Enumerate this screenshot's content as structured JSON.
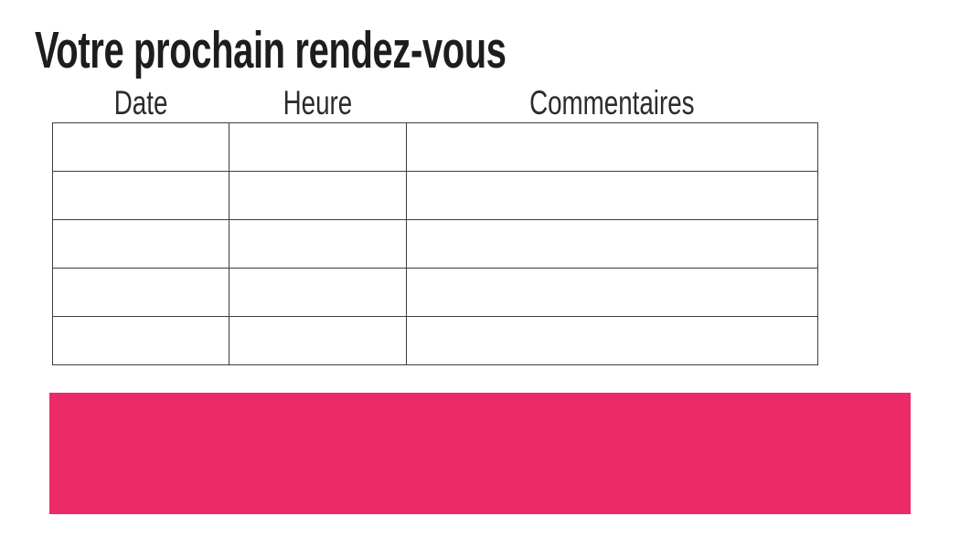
{
  "page": {
    "title": "Votre prochain rendez-vous",
    "background_color": "#FFFFFF",
    "title_color": "#1D1D1F"
  },
  "appointment_table": {
    "headers": [
      "Date",
      "Heure",
      "Commentaires"
    ],
    "row_count": 5,
    "rows": [
      [
        "",
        "",
        ""
      ],
      [
        "",
        "",
        ""
      ],
      [
        "",
        "",
        ""
      ],
      [
        "",
        "",
        ""
      ],
      [
        "",
        "",
        ""
      ]
    ],
    "border_color": "#3D3D3D"
  },
  "banner": {
    "label": "",
    "color": "#ED2A68"
  }
}
